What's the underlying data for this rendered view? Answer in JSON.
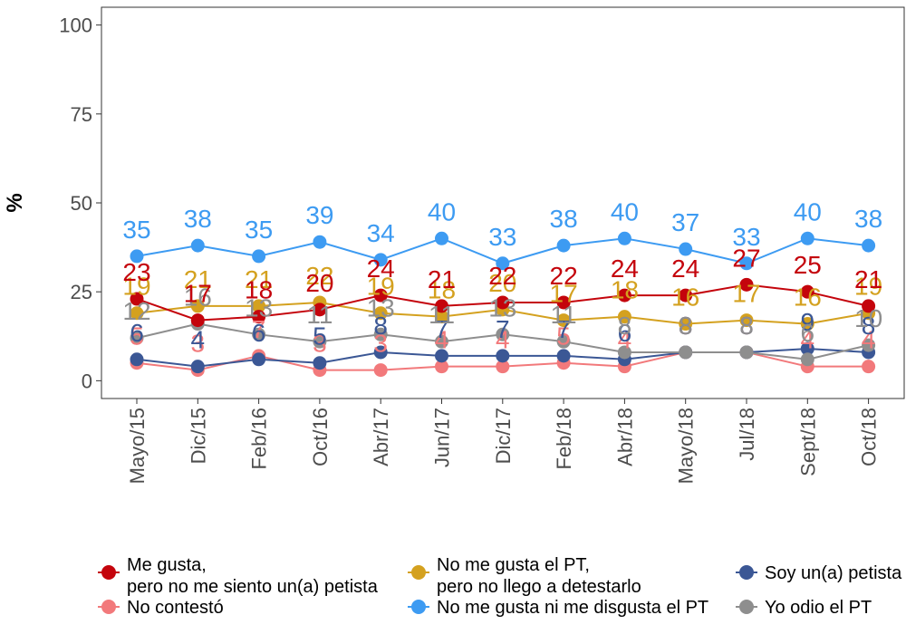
{
  "chart_data": {
    "type": "line",
    "ylabel": "%",
    "xlabel": "",
    "ylim": [
      -5,
      105
    ],
    "yticks": [
      0,
      25,
      50,
      75,
      100
    ],
    "grid": false,
    "legend_position": "bottom",
    "categories": [
      "Mayo/15",
      "Dic/15",
      "Feb/16",
      "Oct/16",
      "Abr/17",
      "Jun/17",
      "Dic/17",
      "Feb/18",
      "Abr/18",
      "Mayo/18",
      "Jul/18",
      "Sept/18",
      "Oct/18"
    ],
    "series": [
      {
        "name": "No me gusta ni me disgusta el PT",
        "color": "#3D9BF2",
        "values": [
          35,
          38,
          35,
          39,
          34,
          40,
          33,
          38,
          40,
          37,
          33,
          40,
          38
        ]
      },
      {
        "name": "Me gusta,\npero no me siento un(a) petista",
        "color": "#C4040C",
        "values": [
          23,
          17,
          18,
          20,
          24,
          21,
          22,
          22,
          24,
          24,
          27,
          25,
          21
        ]
      },
      {
        "name": "No me gusta el PT,\npero no llego a detestarlo",
        "color": "#D4A11F",
        "values": [
          19,
          21,
          21,
          22,
          19,
          18,
          20,
          17,
          18,
          16,
          17,
          16,
          19
        ]
      },
      {
        "name": "Yo odio el PT",
        "color": "#8E8E8E",
        "values": [
          12,
          16,
          13,
          11,
          13,
          11,
          13,
          11,
          8,
          8,
          8,
          6,
          10
        ]
      },
      {
        "name": "Soy un(a) petista",
        "color": "#3B5795",
        "values": [
          6,
          4,
          6,
          5,
          8,
          7,
          7,
          7,
          6,
          8,
          8,
          9,
          8
        ]
      },
      {
        "name": "No contestó",
        "color": "#F2797B",
        "values": [
          5,
          3,
          7,
          3,
          3,
          4,
          4,
          5,
          4,
          8,
          8,
          4,
          4
        ]
      }
    ]
  },
  "legend": {
    "items": [
      {
        "line1": "Me gusta,",
        "line2": "pero no me siento un(a) petista",
        "color": "#C4040C"
      },
      {
        "line1": "No contestó",
        "line2": "",
        "color": "#F2797B"
      },
      {
        "line1": "No me gusta el PT,",
        "line2": "pero no llego a detestarlo",
        "color": "#D4A11F"
      },
      {
        "line1": "No me gusta ni me disgusta el PT",
        "line2": "",
        "color": "#3D9BF2"
      },
      {
        "line1": "Soy un(a) petista",
        "line2": "",
        "color": "#3B5795"
      },
      {
        "line1": "Yo odio el PT",
        "line2": "",
        "color": "#8E8E8E"
      }
    ]
  }
}
